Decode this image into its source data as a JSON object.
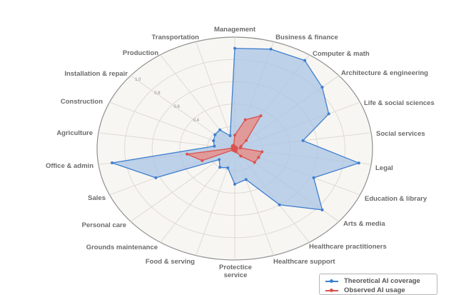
{
  "chart_data": {
    "type": "radar",
    "title": "",
    "categories": [
      "Management",
      "Business & finance",
      "Computer & math",
      "Architecture & engineering",
      "Life & social sciences",
      "Social services",
      "Legal",
      "Education & library",
      "Arts & media",
      "Healthcare practitioners",
      "Healthcare support",
      "Protectice service",
      "Food & serving",
      "Grounds maintenance",
      "Personal care",
      "Sales",
      "Office & admin",
      "Agriculture",
      "Construction",
      "Installation & repair",
      "Production",
      "Transportation"
    ],
    "series": [
      {
        "name": "Theoretical AI coverage",
        "color": "#3f7fcf",
        "fill": "#a9c4e6",
        "values": [
          0.9,
          0.93,
          0.94,
          0.84,
          0.75,
          0.5,
          0.91,
          0.63,
          0.84,
          0.6,
          0.29,
          0.32,
          0.18,
          0.2,
          0.15,
          0.63,
          0.9,
          0.15,
          0.17,
          0.19,
          0.2,
          0.12
        ]
      },
      {
        "name": "Observed AI usage",
        "color": "#d9534f",
        "fill": "#e8918c",
        "values": [
          0.12,
          0.27,
          0.35,
          0.11,
          0.05,
          0.04,
          0.2,
          0.19,
          0.19,
          0.08,
          0.03,
          0.02,
          0.02,
          0.01,
          0.02,
          0.26,
          0.35,
          0.02,
          0.02,
          0.02,
          0.03,
          0.03
        ]
      }
    ],
    "rlim": [
      0,
      1.0
    ],
    "rticks": [
      "0.4",
      "0.6",
      "0.8",
      "1.0"
    ],
    "grid": true,
    "legend_position": "bottom-right"
  },
  "labels": {
    "protective_service_line1": "Protectice",
    "protective_service_line2": "service"
  },
  "legend": {
    "items": [
      {
        "label": "Theoretical AI coverage",
        "color": "#3f7fcf"
      },
      {
        "label": "Observed AI usage",
        "color": "#d9534f"
      }
    ]
  }
}
